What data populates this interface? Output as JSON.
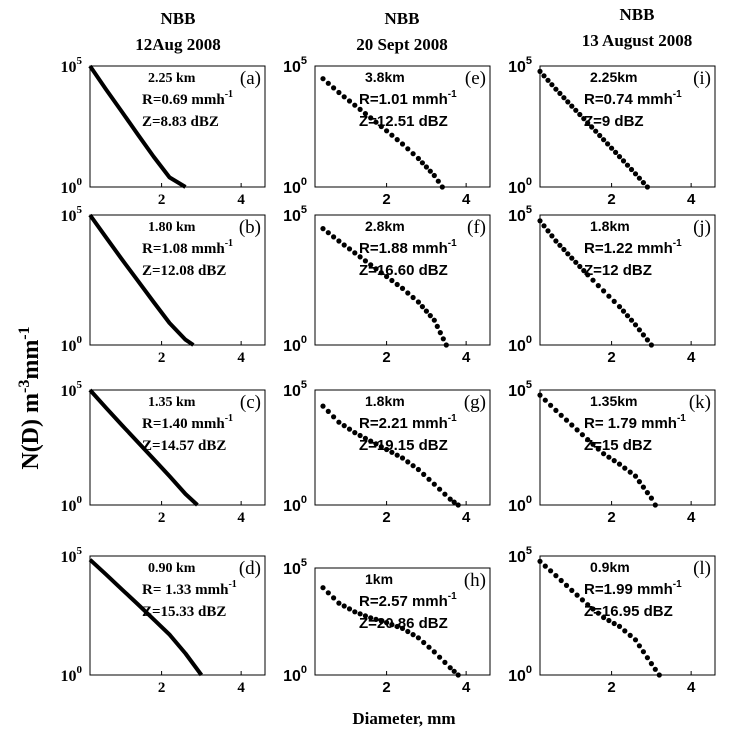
{
  "figure": {
    "ylabel": "N(D) m",
    "ylabel_sup1": "-3",
    "ylabel_mid": "mm",
    "ylabel_sup2": "-1",
    "xlabel": "Diameter, mm"
  },
  "columns": [
    {
      "line1": "NBB",
      "line2": "12Aug 2008"
    },
    {
      "line1": "NBB",
      "line2": "20 Sept 2008"
    },
    {
      "line1": "NBB",
      "line2": "13 August 2008"
    }
  ],
  "chart_data": [
    {
      "type": "line",
      "panel": "(a)",
      "height": "2.25 km",
      "rain_rate": "R=0.69 mmh",
      "reflectivity": "Z=8.83 dBZ",
      "ylim": [
        1,
        100000
      ],
      "yscale": "log",
      "xticks": [
        2,
        4
      ],
      "yticks": [
        "10^0",
        "10^5"
      ],
      "x": [
        0.2,
        0.6,
        1.0,
        1.4,
        1.8,
        2.2,
        2.6
      ],
      "y": [
        100000,
        11000,
        1300,
        150,
        18,
        2.5,
        1
      ]
    },
    {
      "type": "line",
      "panel": "(b)",
      "height": "1.80 km",
      "rain_rate": "R=1.08 mmh",
      "reflectivity": "Z=12.08 dBZ",
      "ylim": [
        1,
        100000
      ],
      "yscale": "log",
      "xticks": [
        2,
        4
      ],
      "yticks": [
        "10^0",
        "10^5"
      ],
      "x": [
        0.2,
        0.6,
        1.0,
        1.4,
        1.8,
        2.2,
        2.6,
        2.8
      ],
      "y": [
        100000,
        14000,
        2000,
        300,
        45,
        7,
        1.6,
        1
      ]
    },
    {
      "type": "line",
      "panel": "(c)",
      "height": "1.35 km",
      "rain_rate": "R=1.40 mmh",
      "reflectivity": "Z=14.57 dBZ",
      "ylim": [
        1,
        100000
      ],
      "yscale": "log",
      "xticks": [
        2,
        4
      ],
      "yticks": [
        "10^0",
        "10^5"
      ],
      "x": [
        0.2,
        0.6,
        1.0,
        1.4,
        1.8,
        2.2,
        2.6,
        2.9
      ],
      "y": [
        100000,
        17000,
        3000,
        550,
        100,
        18,
        3,
        1
      ]
    },
    {
      "type": "line",
      "panel": "(d)",
      "height": "0.90 km",
      "rain_rate": "R= 1.33 mmh",
      "reflectivity": "Z=15.33 dBZ",
      "ylim": [
        1,
        100000
      ],
      "yscale": "log",
      "xticks": [
        2,
        4
      ],
      "yticks": [
        "10^0",
        "10^5"
      ],
      "x": [
        0.2,
        0.6,
        1.0,
        1.4,
        1.8,
        2.2,
        2.6,
        3.0
      ],
      "y": [
        70000,
        17000,
        4000,
        950,
        220,
        50,
        8,
        1
      ]
    },
    {
      "type": "scatter",
      "panel": "(e)",
      "height": "3.8km",
      "rain_rate": "R=1.01 mmh",
      "reflectivity": "Z=12.51 dBZ",
      "ylim": [
        1,
        100000
      ],
      "yscale": "log",
      "xticks": [
        2,
        4
      ],
      "yticks": [
        "10^0",
        "10^5"
      ],
      "x": [
        0.4,
        0.8,
        1.2,
        1.6,
        2.0,
        2.4,
        2.8,
        3.2,
        3.4
      ],
      "y": [
        30000,
        8000,
        2400,
        720,
        210,
        60,
        15,
        3,
        1
      ]
    },
    {
      "type": "scatter",
      "panel": "(f)",
      "height": "2.8km",
      "rain_rate": "R=1.88 mmh",
      "reflectivity": "Z=16.60 dBZ",
      "ylim": [
        1,
        100000
      ],
      "yscale": "log",
      "xticks": [
        2,
        4
      ],
      "yticks": [
        "10^0",
        "10^5"
      ],
      "x": [
        0.4,
        0.8,
        1.2,
        1.6,
        2.0,
        2.4,
        2.8,
        3.2,
        3.5
      ],
      "y": [
        30000,
        10000,
        3500,
        1200,
        430,
        150,
        45,
        9,
        1
      ]
    },
    {
      "type": "scatter",
      "panel": "(g)",
      "height": "1.8km",
      "rain_rate": "R=2.21 mmh",
      "reflectivity": "Z=19.15 dBZ",
      "ylim": [
        1,
        100000
      ],
      "yscale": "log",
      "xticks": [
        2,
        4
      ],
      "yticks": [
        "10^0",
        "10^5"
      ],
      "x": [
        0.4,
        0.8,
        1.2,
        1.6,
        2.0,
        2.4,
        2.8,
        3.2,
        3.6,
        3.8
      ],
      "y": [
        20000,
        4000,
        1400,
        600,
        260,
        110,
        35,
        8,
        1.8,
        1
      ]
    },
    {
      "type": "scatter",
      "panel": "(h)",
      "height": "1km",
      "rain_rate": "R=2.57 mmh",
      "reflectivity": "Z=20.86 dBZ",
      "ylim": [
        1,
        100000
      ],
      "yscale": "log",
      "xticks": [
        2,
        4
      ],
      "yticks": [
        "10^0",
        "10^5"
      ],
      "x": [
        0.4,
        0.8,
        1.2,
        1.6,
        2.0,
        2.4,
        2.8,
        3.2,
        3.6,
        3.8
      ],
      "y": [
        12000,
        2300,
        900,
        470,
        280,
        150,
        55,
        12,
        2.2,
        1
      ]
    },
    {
      "type": "scatter",
      "panel": "(i)",
      "height": "2.25km",
      "rain_rate": "R=0.74 mmh",
      "reflectivity": "Z=9 dBZ",
      "ylim": [
        1,
        100000
      ],
      "yscale": "log",
      "xticks": [
        2,
        4
      ],
      "yticks": [
        "10^0",
        "10^5"
      ],
      "x": [
        0.2,
        0.6,
        1.0,
        1.4,
        1.8,
        2.2,
        2.6,
        2.9
      ],
      "y": [
        60000,
        11000,
        2200,
        450,
        90,
        18,
        3.5,
        1
      ]
    },
    {
      "type": "scatter",
      "panel": "(j)",
      "height": "1.8km",
      "rain_rate": "R=1.22 mmh",
      "reflectivity": "Z=12 dBZ",
      "ylim": [
        1,
        100000
      ],
      "yscale": "log",
      "xticks": [
        2,
        4
      ],
      "yticks": [
        "10^0",
        "10^5"
      ],
      "x": [
        0.2,
        0.6,
        1.0,
        1.4,
        1.8,
        2.2,
        2.6,
        3.0
      ],
      "y": [
        60000,
        10000,
        2200,
        500,
        120,
        30,
        6,
        1
      ]
    },
    {
      "type": "scatter",
      "panel": "(k)",
      "height": "1.35km",
      "rain_rate": "R= 1.79 mmh",
      "reflectivity": "Z=15 dBZ",
      "ylim": [
        1,
        100000
      ],
      "yscale": "log",
      "xticks": [
        2,
        4
      ],
      "yticks": [
        "10^0",
        "10^5"
      ],
      "x": [
        0.2,
        0.6,
        1.0,
        1.4,
        1.8,
        2.2,
        2.6,
        3.0,
        3.1
      ],
      "y": [
        60000,
        13000,
        3000,
        700,
        170,
        60,
        18,
        2,
        1
      ]
    },
    {
      "type": "scatter",
      "panel": "(l)",
      "height": "0.9km",
      "rain_rate": "R=1.99 mmh",
      "reflectivity": "Z=16.95 dBZ",
      "ylim": [
        1,
        100000
      ],
      "yscale": "log",
      "xticks": [
        2,
        4
      ],
      "yticks": [
        "10^0",
        "10^5"
      ],
      "x": [
        0.2,
        0.6,
        1.0,
        1.4,
        1.8,
        2.2,
        2.6,
        3.0,
        3.2
      ],
      "y": [
        60000,
        15000,
        3600,
        900,
        260,
        110,
        30,
        3,
        1
      ]
    }
  ]
}
